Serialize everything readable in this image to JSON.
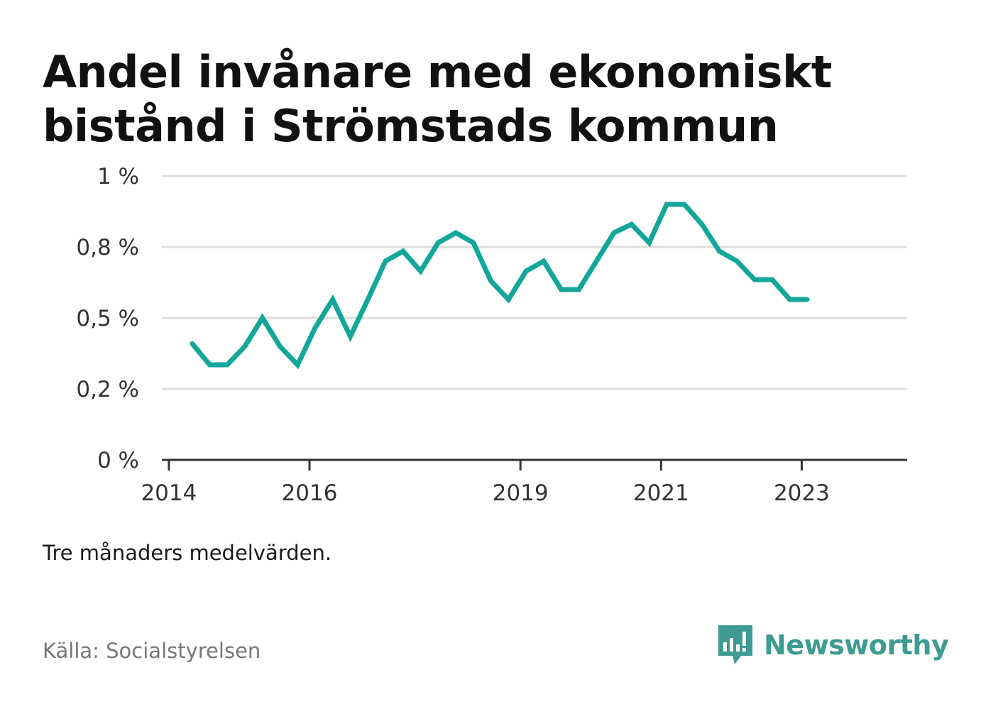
{
  "title": "Andel invånare med ekonomiskt bistånd i Strömstads kommun",
  "note": "Tre månaders medelvärden.",
  "source": "Källa: Socialstyrelsen",
  "brand": {
    "name": "Newsworthy",
    "icon": "newsworthy-logo-icon",
    "color": "#3d9b94"
  },
  "chart_data": {
    "type": "line",
    "title": "Andel invånare med ekonomiskt bistånd i Strömstads kommun",
    "xlabel": "",
    "ylabel": "",
    "line_color": "#14a69a",
    "ylim": [
      0,
      1
    ],
    "grid": true,
    "y_ticks": [
      {
        "value": 0,
        "label": "0 %"
      },
      {
        "value": 0.25,
        "label": "0,2 %"
      },
      {
        "value": 0.5,
        "label": "0,5 %"
      },
      {
        "value": 0.75,
        "label": "0,8 %"
      },
      {
        "value": 1,
        "label": "1 %"
      }
    ],
    "x_ticks": [
      {
        "value": 2014,
        "label": "2014"
      },
      {
        "value": 2016,
        "label": "2016"
      },
      {
        "value": 2019,
        "label": "2019"
      },
      {
        "value": 2021,
        "label": "2021"
      },
      {
        "value": 2023,
        "label": "2023"
      }
    ],
    "xlim": [
      2013.9,
      2024.5
    ],
    "series": [
      {
        "x": [
          2014.33,
          2014.58,
          2014.83,
          2015.08,
          2015.33,
          2015.58,
          2015.83,
          2016.08,
          2016.33,
          2016.58,
          2016.83,
          2017.08,
          2017.33,
          2017.58,
          2017.83,
          2018.08,
          2018.33,
          2018.58,
          2018.83,
          2019.08,
          2019.33,
          2019.58,
          2019.83,
          2020.08,
          2020.33,
          2020.58,
          2020.83,
          2021.08,
          2021.33,
          2021.58,
          2021.83,
          2022.08,
          2022.33,
          2022.58,
          2022.83,
          2023.08
        ],
        "y": [
          0.41,
          0.335,
          0.335,
          0.4,
          0.5,
          0.4,
          0.335,
          0.465,
          0.565,
          0.435,
          0.565,
          0.7,
          0.735,
          0.665,
          0.765,
          0.8,
          0.765,
          0.63,
          0.565,
          0.665,
          0.7,
          0.6,
          0.6,
          0.7,
          0.8,
          0.83,
          0.765,
          0.9,
          0.9,
          0.83,
          0.735,
          0.7,
          0.635,
          0.635,
          0.565,
          0.565
        ]
      }
    ]
  }
}
